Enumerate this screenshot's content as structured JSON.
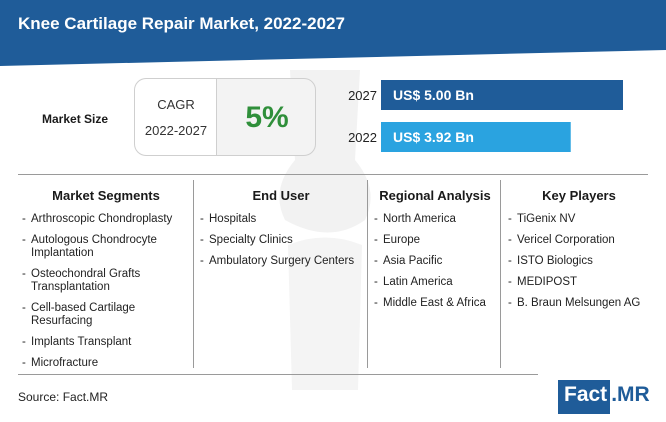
{
  "title": "Knee Cartilage Repair Market, 2022-2027",
  "market_size_label": "Market Size",
  "cagr": {
    "label": "CAGR",
    "period": "2022-2027",
    "value": "5%"
  },
  "chart_data": {
    "type": "bar",
    "orientation": "horizontal",
    "categories": [
      "2027",
      "2022"
    ],
    "values": [
      5.0,
      3.92
    ],
    "value_labels": [
      "US$ 5.00 Bn",
      "US$ 3.92 Bn"
    ],
    "unit": "US$ Bn",
    "colors": [
      "#1f5c99",
      "#2aa3e0"
    ]
  },
  "columns": [
    {
      "heading": "Market Segments",
      "items": [
        "Arthroscopic Chondroplasty",
        "Autologous Chondrocyte Implantation",
        "Osteochondral Grafts Transplantation",
        "Cell-based Cartilage Resurfacing",
        "Implants Transplant",
        "Microfracture"
      ]
    },
    {
      "heading": "End User",
      "items": [
        "Hospitals",
        "Specialty Clinics",
        "Ambulatory Surgery Centers"
      ]
    },
    {
      "heading": "Regional Analysis",
      "items": [
        "North America",
        "Europe",
        "Asia Pacific",
        "Latin America",
        "Middle East & Africa"
      ]
    },
    {
      "heading": "Key Players",
      "items": [
        "TiGenix NV",
        "Vericel Corporation",
        "ISTO Biologics",
        "MEDIPOST",
        "B. Braun Melsungen AG"
      ]
    }
  ],
  "source": "Source: Fact.MR",
  "logo": {
    "part1": "Fact",
    "part2": ".MR"
  }
}
